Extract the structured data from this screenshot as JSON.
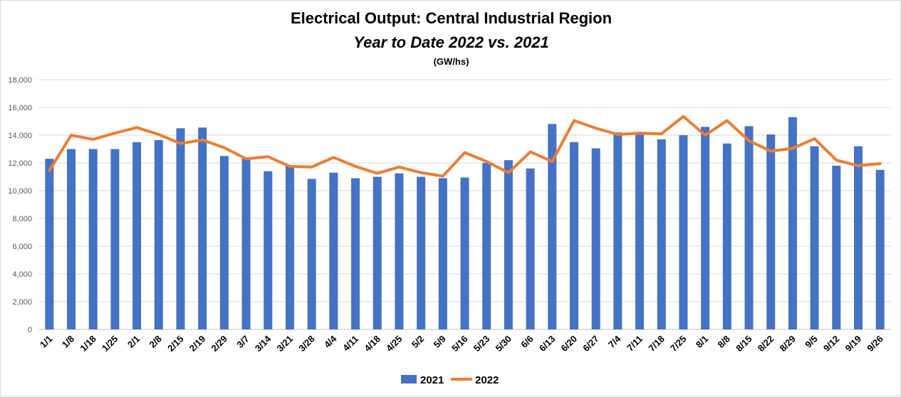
{
  "chart_data": {
    "type": "bar",
    "title": "Electrical Output:  Central Industrial Region",
    "subtitle": "Year to Date 2022 vs. 2021",
    "unit_label": "(GW/hs)",
    "ylim": [
      0,
      18000
    ],
    "yticks": [
      "0",
      "2,000",
      "4,000",
      "6,000",
      "8,000",
      "10,000",
      "12,000",
      "14,000",
      "16,000",
      "18,000"
    ],
    "ytick_values": [
      0,
      2000,
      4000,
      6000,
      8000,
      10000,
      12000,
      14000,
      16000,
      18000
    ],
    "grid": true,
    "legend_position": "bottom",
    "categories": [
      "1/1",
      "1/8",
      "1/18",
      "1/25",
      "2/1",
      "2/8",
      "2/15",
      "2/19",
      "2/29",
      "3/7",
      "3/14",
      "3/21",
      "3/28",
      "4/4",
      "4/11",
      "4/18",
      "4/25",
      "5/2",
      "5/9",
      "5/16",
      "5/23",
      "5/30",
      "6/6",
      "6/13",
      "6/20",
      "6/27",
      "7/4",
      "7/11",
      "7/18",
      "7/25",
      "8/1",
      "8/8",
      "8/15",
      "8/22",
      "8/29",
      "9/5",
      "9/12",
      "9/19",
      "9/26"
    ],
    "series": [
      {
        "name": "2021",
        "type": "bar",
        "color": "#4472C4",
        "values": [
          12300,
          13000,
          13000,
          13000,
          13500,
          13650,
          14500,
          14550,
          12500,
          12300,
          11400,
          11800,
          10850,
          11300,
          10900,
          11000,
          11250,
          11000,
          10900,
          10950,
          12000,
          12200,
          11600,
          14800,
          13500,
          13050,
          14200,
          14100,
          13700,
          14000,
          14600,
          13400,
          14650,
          14050,
          15300,
          13200,
          11800,
          13200,
          11500
        ]
      },
      {
        "name": "2022",
        "type": "line",
        "color": "#ED7D31",
        "values": [
          11450,
          14000,
          13700,
          14150,
          14550,
          14050,
          13400,
          13650,
          13100,
          12300,
          12450,
          11750,
          11700,
          12400,
          11750,
          11250,
          11700,
          11300,
          11050,
          12750,
          12100,
          11300,
          12800,
          12100,
          15050,
          14500,
          14050,
          14150,
          14100,
          15350,
          14000,
          15050,
          13600,
          12850,
          13050,
          13750,
          12200,
          11800,
          11950
        ]
      }
    ]
  }
}
